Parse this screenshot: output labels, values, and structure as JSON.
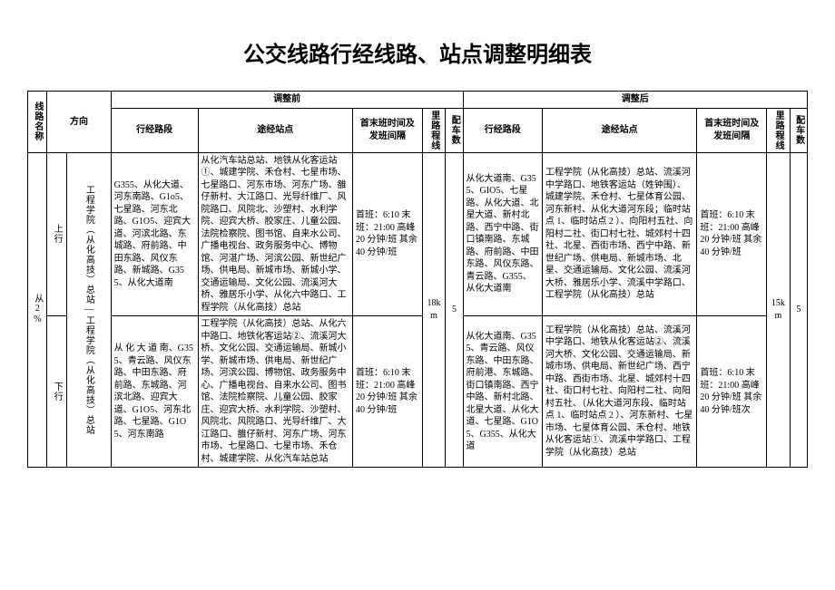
{
  "title": "公交线路行经线路、站点调整明细表",
  "headers": {
    "route_name": "线路名称",
    "direction": "方向",
    "before": "调整前",
    "after": "调整后",
    "segment": "行经路段",
    "stops": "途经站点",
    "schedule": "首末班时间及发班间隔",
    "distance": "里路程线",
    "vehicles": "配车数"
  },
  "route": {
    "name": "从2%",
    "distance_before": "18km",
    "vehicles_before": "5",
    "distance_after": "15km",
    "vehicles_after": "5",
    "rows": [
      {
        "direction": "上行",
        "way": "工程学院（从化高技）总站—工程学院（从化高技）总站",
        "before": {
          "segment": "G355、从化大道、河东南路、G1o5、七星路、河东北路、G1O5、迎宾大道、河滨北路、东城路、府前路、中田东路、风仪东路、新城路、G355、从化大道南",
          "stops": "从化汽车站总站、地铁从化客运站①、城建学院、禾仓村、七星市场、七星路口、河东市场、河东广场、雒仔新村、大江路口、光导纤维厂、风院路口、风院北、沙塑村、水利学院、迎宾大桥、胶家庄、儿童公园、法院检察院、图书馆、自来水公司、广播电视台、政务服务中心、博物馆、河湛广场、河滨公园、新世纪广场、供电局、新城市场、新城小学、交通运输局、文化公园、流溪河大桥、雅居乐小学、从化六中路口、工程学院（从化高技）总站",
          "schedule": "首班：6:10 末班：21:00 高峰20 分钟/班\n其余 40 分钟/班"
        },
        "after": {
          "segment": "从化大道南、G355、GIO5、七星路、从化大道、北星大道、新村北路、西宁中路、街口镇南路、东城路、府前路、中田东路、风仪东路、青云路、G355、从化大道南",
          "stops": "工程学院（从化高技）总站、流溪河中学路口、地铁客运站（姓钟围）、城建学院、禾仓村、七星体育公园、河东新村、从化大道河东段；临时站点 1、临时站点 2 ）、向阳村五社、向阳村二社、街口村七社、城郊村十四社、北星、西街市场、西宁中路、新世纪广场、供电局、新城市场、北星、交通运输局、文化公园、流溪河大桥、雅居乐小学、流溪中学路口、工程学院（从化高技）总站",
          "schedule": "首班：6:10 末班：21:00 高峰20 分钟/班\n其余 40 分钟/班"
        }
      },
      {
        "direction": "下行",
        "way": "",
        "before": {
          "segment": "从 化 大 道 南、G355、青云路、风仪东路、中田东路、府前路、东城路、河滨北路、迎宾大道、G1O5、河东北路、七星路、G1O5、河东南路",
          "stops": "工程学院（从化高技）总站、从化六中路口、地铁化客运站②、流溪河大桥、文化公园、交通运输局、新城小学、新城市场、供电局、新世纪广场、河滨公园、博物馆、政务服务中心、广播电视台、自来水公司、图书馆、法院检察院、儿童公园、胶家庄、迎宾大桥、水利学院、沙塑村、风院北、风院路口、光导纤维厂、大江路口、雒仔新村、河东广场、河东市场、七星路口、七星市场、禾仓村、城建学院、从化汽车站总站",
          "schedule": "首班：6:10 末班：21:00 高峰 20 分钟/班\n其余 40 分钟/班"
        },
        "after": {
          "segment": "从化大道南、G355、青云路、风仪东路、中田东路、府前港、东城路、街口镇南路、西宁中路、新村北路、北星大道、从化大道、七星路、G1O5、G355、从化大道",
          "stops": "工程学院（从化高技）总站、流溪河中学路口、地铁从化客运站②、流溪河大桥、文化公园、交通运输局、新城市场、供电局、新世纪广场、西宁中路、西街市场、北星、城郊村十四社、街口村七社、向阳村二社、向阳村五社、（从化大道河东段、临时站点 1、临时站点 2 ）、河东新村、七星市场、七星体育公园、禾仓村、地铁从化客运站①、流溪中学路口、工程学院（从化高技）总站",
          "schedule": "首班：6:10 末班：21:00 高峰20 分钟/班\n其余 40 分钟/班次"
        }
      }
    ]
  }
}
